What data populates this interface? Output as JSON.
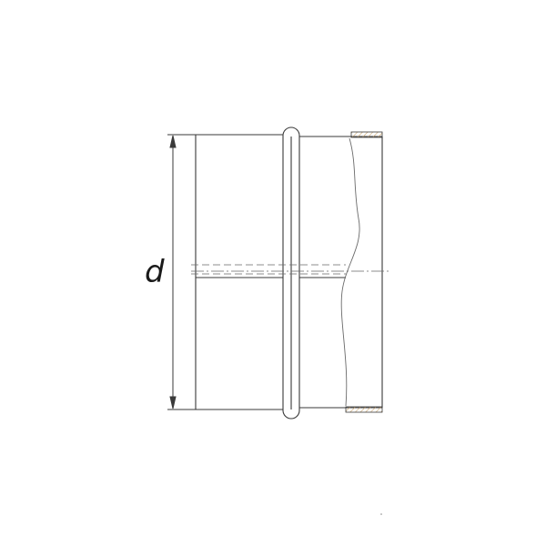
{
  "drawing": {
    "dimension_label": "d",
    "line_color": "#3a3a3a",
    "hatch_color": "#c9a36b"
  }
}
